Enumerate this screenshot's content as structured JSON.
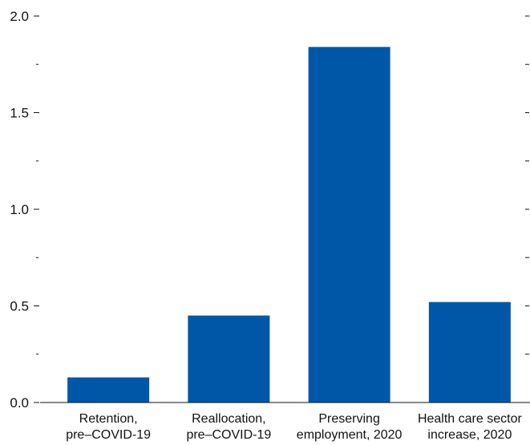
{
  "chart_data": {
    "type": "bar",
    "categories": [
      [
        "Retention,",
        "pre–COVID-19"
      ],
      [
        "Reallocation,",
        "pre–COVID-19"
      ],
      [
        "Preserving",
        "employment, 2020"
      ],
      [
        "Health care sector",
        "increase, 2020"
      ]
    ],
    "values": [
      0.13,
      0.45,
      1.84,
      0.52
    ],
    "ylim": [
      0,
      2.0
    ],
    "yticks": [
      "0.0",
      "0.5",
      "1.0",
      "1.5",
      "2.0"
    ],
    "minor_ticks": [
      0.25,
      0.75,
      1.25,
      1.75
    ],
    "grid": false,
    "bar_color": "#0057A8",
    "axis_color": "#111111"
  }
}
